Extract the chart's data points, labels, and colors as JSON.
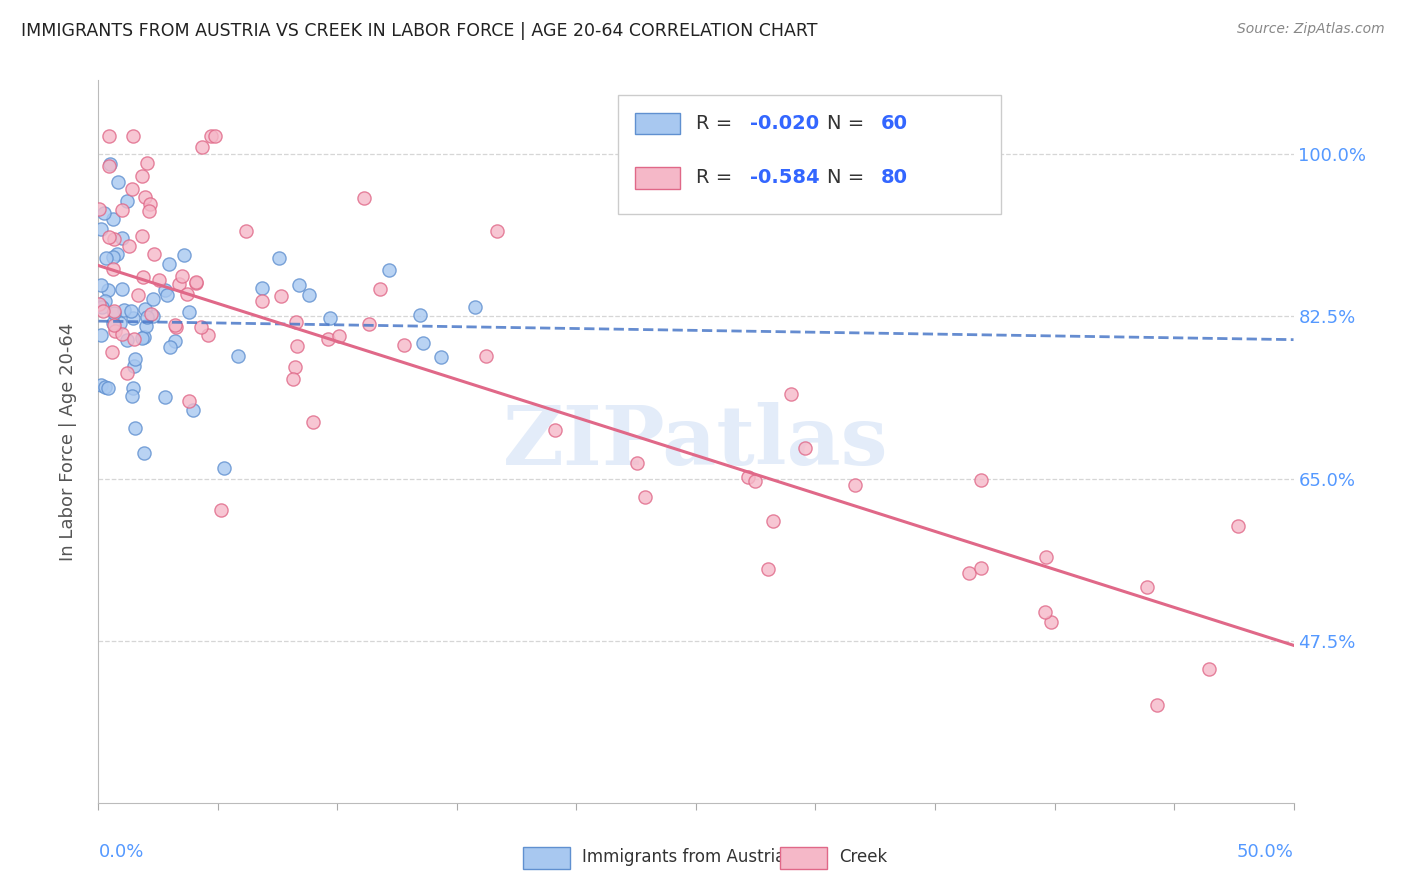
{
  "title": "IMMIGRANTS FROM AUSTRIA VS CREEK IN LABOR FORCE | AGE 20-64 CORRELATION CHART",
  "source": "Source: ZipAtlas.com",
  "ylabel": "In Labor Force | Age 20-64",
  "xlim": [
    0.0,
    0.5
  ],
  "ylim": [
    0.3,
    1.08
  ],
  "yticks": [
    1.0,
    0.825,
    0.65,
    0.475
  ],
  "ytick_labels": [
    "100.0%",
    "82.5%",
    "65.0%",
    "47.5%"
  ],
  "xtick_left_label": "0.0%",
  "xtick_right_label": "50.0%",
  "austria_color": "#a8c8f0",
  "austria_edge": "#6090d0",
  "creek_color": "#f5b8c8",
  "creek_edge": "#e06888",
  "austria_R": -0.02,
  "austria_N": 60,
  "creek_R": -0.584,
  "creek_N": 80,
  "austria_line_color": "#4a78c8",
  "creek_line_color": "#e06888",
  "legend_label_austria": "Immigrants from Austria",
  "legend_label_creek": "Creek",
  "watermark": "ZIPatlas",
  "background_color": "#ffffff",
  "grid_color": "#cccccc",
  "title_color": "#222222",
  "axis_tick_color": "#5599ff",
  "legend_R_color": "#3366ff",
  "legend_N_color": "#3366ff",
  "austria_line_intercept": 0.82,
  "austria_line_slope": -0.04,
  "creek_line_intercept": 0.88,
  "creek_line_slope": -0.82
}
